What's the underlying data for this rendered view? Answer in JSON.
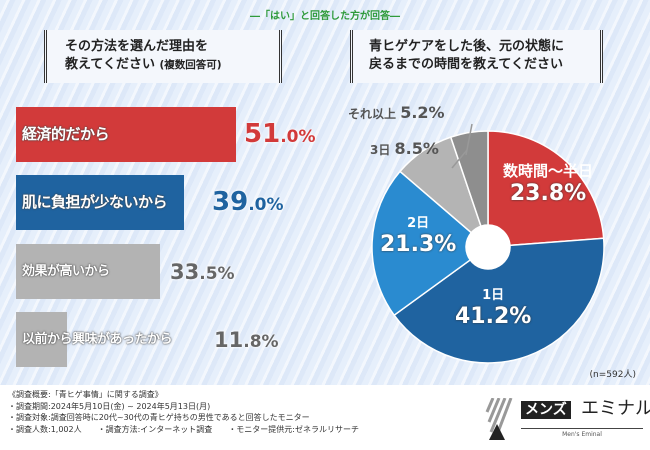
{
  "header": {
    "note": "―「はい」と回答した方が回答―",
    "q1_line1": "その方法を選んだ理由を",
    "q1_line2": "教えてください",
    "q1_suffix": "(複数回答可)",
    "q2_line1": "青ヒゲケアをした後、元の状態に",
    "q2_line2": "戻るまでの時間を教えてください"
  },
  "chart_data": [
    {
      "type": "bar",
      "orientation": "horizontal",
      "categories": [
        "経済的だから",
        "肌に負担が少ないから",
        "効果が高いから",
        "以前から興味があったから"
      ],
      "values": [
        51.0,
        39.0,
        33.5,
        11.8
      ],
      "labels": [
        "51.0%",
        "39.0%",
        "33.5%",
        "11.8%"
      ],
      "colors": [
        "#d23a3a",
        "#1f63a0",
        "#b3b3b3",
        "#b3b3b3"
      ],
      "value_colors": [
        "#d23a3a",
        "#1f63a0",
        "#666666",
        "#666666"
      ],
      "unit": "%"
    },
    {
      "type": "pie",
      "donut": true,
      "categories": [
        "数時間〜半日",
        "1日",
        "2日",
        "3日",
        "それ以上"
      ],
      "values": [
        23.8,
        41.2,
        21.3,
        8.5,
        5.2
      ],
      "labels": [
        "23.8%",
        "41.2%",
        "21.3%",
        "8.5%",
        "5.2%"
      ],
      "colors": [
        "#d23a3a",
        "#1f63a0",
        "#2a8bd0",
        "#b4b4b4",
        "#8e8e8e"
      ],
      "n_label": "(n=592人)"
    }
  ],
  "footer": {
    "lines": [
      "《調査概要:「青ヒゲ事情」に関する調査》",
      "・調査期間:2024年5月10日(金) ~ 2024年5月13日(月)",
      "・調査対象:調査回答時に20代~30代の青ヒゲ持ちの男性であると回答したモニター"
    ],
    "count": "・調査人数:1,002人",
    "method": "・調査方法:インターネット調査",
    "provider": "・モニター提供元:ゼネラルリサーチ"
  },
  "logo": {
    "left": "メンズ",
    "right": "エミナル",
    "sub": "Men's Eminal"
  }
}
